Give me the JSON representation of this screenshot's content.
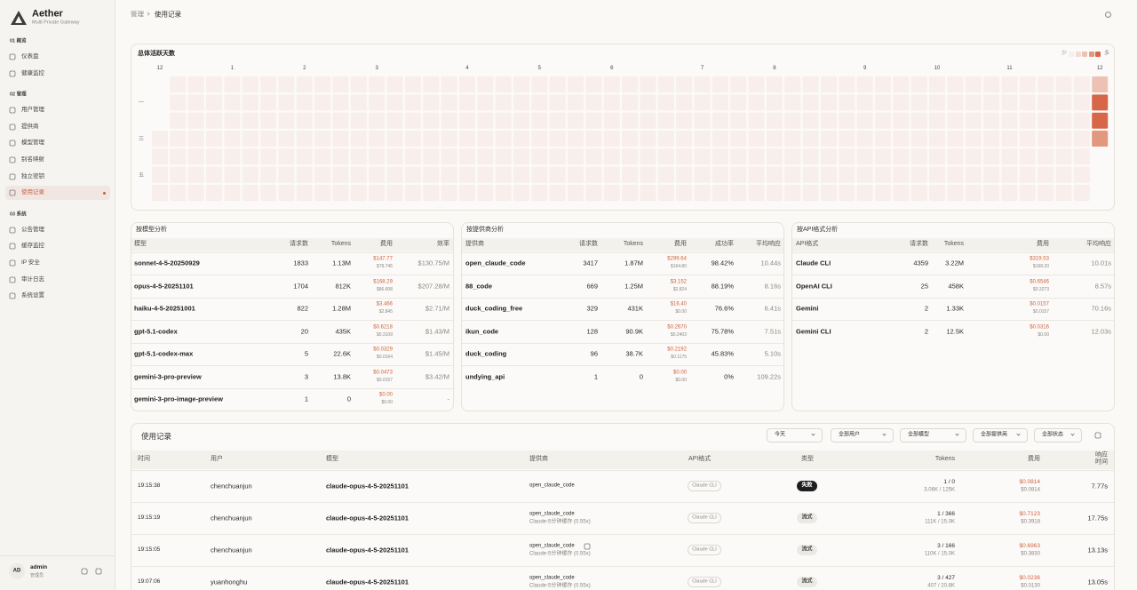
{
  "sidebar": {
    "brand": "Aether",
    "tagline": "Multi Private Gateway",
    "sections": [
      {
        "label": "01 概览",
        "items": [
          {
            "label": "仪表盘"
          },
          {
            "label": "健康监控"
          }
        ]
      },
      {
        "label": "02 管理",
        "items": [
          {
            "label": "用户管理"
          },
          {
            "label": "提供商"
          },
          {
            "label": "模型管理"
          },
          {
            "label": "别名映射"
          },
          {
            "label": "独立密钥"
          },
          {
            "label": "使用记录",
            "active": true
          }
        ]
      },
      {
        "label": "03 系统",
        "items": [
          {
            "label": "公告管理"
          },
          {
            "label": "缓存监控"
          },
          {
            "label": "IP 安全"
          },
          {
            "label": "审计日志"
          },
          {
            "label": "系统设置"
          }
        ]
      }
    ],
    "user": {
      "initials": "AD",
      "name": "admin",
      "role": "管理员"
    }
  },
  "breadcrumb": [
    "管理",
    "使用记录"
  ],
  "heatmap": {
    "title": "总体活跃天数",
    "legend_low": "少",
    "legend_high": "多",
    "legend_colors": [
      "#f8eeeb",
      "#f3dcd4",
      "#edc2b4",
      "#e3977e",
      "#d8674a"
    ],
    "day_labels": [
      {
        "label": "一",
        "row": 1
      },
      {
        "label": "三",
        "row": 3
      },
      {
        "label": "五",
        "row": 5
      }
    ],
    "months": [
      {
        "label": "12",
        "week": 0
      },
      {
        "label": "1",
        "week": 4
      },
      {
        "label": "2",
        "week": 8
      },
      {
        "label": "3",
        "week": 12
      },
      {
        "label": "4",
        "week": 17
      },
      {
        "label": "5",
        "week": 21
      },
      {
        "label": "6",
        "week": 25
      },
      {
        "label": "7",
        "week": 30
      },
      {
        "label": "8",
        "week": 34
      },
      {
        "label": "9",
        "week": 39
      },
      {
        "label": "10",
        "week": 43
      },
      {
        "label": "11",
        "week": 47
      },
      {
        "label": "12",
        "week": 52
      }
    ],
    "weeks": [
      [
        null,
        null,
        null,
        0,
        0,
        0,
        0
      ],
      [
        0,
        0,
        0,
        0,
        0,
        0,
        0
      ],
      [
        0,
        0,
        0,
        0,
        0,
        0,
        0
      ],
      [
        0,
        0,
        0,
        0,
        0,
        0,
        0
      ],
      [
        0,
        0,
        0,
        0,
        0,
        0,
        0
      ],
      [
        0,
        0,
        0,
        0,
        0,
        0,
        0
      ],
      [
        0,
        0,
        0,
        0,
        0,
        0,
        0
      ],
      [
        0,
        0,
        0,
        0,
        0,
        0,
        0
      ],
      [
        0,
        0,
        0,
        0,
        0,
        0,
        0
      ],
      [
        0,
        0,
        0,
        0,
        0,
        0,
        0
      ],
      [
        0,
        0,
        0,
        0,
        0,
        0,
        0
      ],
      [
        0,
        0,
        0,
        0,
        0,
        0,
        0
      ],
      [
        0,
        0,
        0,
        0,
        0,
        0,
        0
      ],
      [
        0,
        0,
        0,
        0,
        0,
        0,
        0
      ],
      [
        0,
        0,
        0,
        0,
        0,
        0,
        0
      ],
      [
        0,
        0,
        0,
        0,
        0,
        0,
        0
      ],
      [
        0,
        0,
        0,
        0,
        0,
        0,
        0
      ],
      [
        0,
        0,
        0,
        0,
        0,
        0,
        0
      ],
      [
        0,
        0,
        0,
        0,
        0,
        0,
        0
      ],
      [
        0,
        0,
        0,
        0,
        0,
        0,
        0
      ],
      [
        0,
        0,
        0,
        0,
        0,
        0,
        0
      ],
      [
        0,
        0,
        0,
        0,
        0,
        0,
        0
      ],
      [
        0,
        0,
        0,
        0,
        0,
        0,
        0
      ],
      [
        0,
        0,
        0,
        0,
        0,
        0,
        0
      ],
      [
        0,
        0,
        0,
        0,
        0,
        0,
        0
      ],
      [
        0,
        0,
        0,
        0,
        0,
        0,
        0
      ],
      [
        0,
        0,
        0,
        0,
        0,
        0,
        0
      ],
      [
        0,
        0,
        0,
        0,
        0,
        0,
        0
      ],
      [
        0,
        0,
        0,
        0,
        0,
        0,
        0
      ],
      [
        0,
        0,
        0,
        0,
        0,
        0,
        0
      ],
      [
        0,
        0,
        0,
        0,
        0,
        0,
        0
      ],
      [
        0,
        0,
        0,
        0,
        0,
        0,
        0
      ],
      [
        0,
        0,
        0,
        0,
        0,
        0,
        0
      ],
      [
        0,
        0,
        0,
        0,
        0,
        0,
        0
      ],
      [
        0,
        0,
        0,
        0,
        0,
        0,
        0
      ],
      [
        0,
        0,
        0,
        0,
        0,
        0,
        0
      ],
      [
        0,
        0,
        0,
        0,
        0,
        0,
        0
      ],
      [
        0,
        0,
        0,
        0,
        0,
        0,
        0
      ],
      [
        0,
        0,
        0,
        0,
        0,
        0,
        0
      ],
      [
        0,
        0,
        0,
        0,
        0,
        0,
        0
      ],
      [
        0,
        0,
        0,
        0,
        0,
        0,
        0
      ],
      [
        0,
        0,
        0,
        0,
        0,
        0,
        0
      ],
      [
        0,
        0,
        0,
        0,
        0,
        0,
        0
      ],
      [
        0,
        0,
        0,
        0,
        0,
        0,
        0
      ],
      [
        0,
        0,
        0,
        0,
        0,
        0,
        0
      ],
      [
        0,
        0,
        0,
        0,
        0,
        0,
        0
      ],
      [
        0,
        0,
        0,
        0,
        0,
        0,
        0
      ],
      [
        0,
        0,
        0,
        0,
        0,
        0,
        0
      ],
      [
        0,
        0,
        0,
        0,
        0,
        0,
        0
      ],
      [
        0,
        0,
        0,
        0,
        0,
        0,
        0
      ],
      [
        0,
        0,
        0,
        0,
        0,
        0,
        0
      ],
      [
        0,
        0,
        0,
        0,
        0,
        0,
        0
      ],
      [
        2,
        4,
        4,
        3,
        null,
        null,
        null
      ]
    ]
  },
  "by_model": {
    "title": "按模型分析",
    "headers": [
      "模型",
      "请求数",
      "Tokens",
      "费用",
      "效率"
    ],
    "rows": [
      {
        "name": "sonnet-4-5-20250929",
        "requests": "1833",
        "tokens": "1.13M",
        "cost": "$147.77",
        "cost_sub": "$78.745",
        "efficiency": "$130.75/M"
      },
      {
        "name": "opus-4-5-20251101",
        "requests": "1704",
        "tokens": "812K",
        "cost": "$168.29",
        "cost_sub": "$86.608",
        "efficiency": "$207.28/M"
      },
      {
        "name": "haiku-4-5-20251001",
        "requests": "822",
        "tokens": "1.28M",
        "cost": "$3.466",
        "cost_sub": "$2.845",
        "efficiency": "$2.71/M"
      },
      {
        "name": "gpt-5.1-codex",
        "requests": "20",
        "tokens": "435K",
        "cost": "$0.6218",
        "cost_sub": "$0.3109",
        "efficiency": "$1.43/M"
      },
      {
        "name": "gpt-5.1-codex-max",
        "requests": "5",
        "tokens": "22.6K",
        "cost": "$0.0329",
        "cost_sub": "$0.0164",
        "efficiency": "$1.45/M"
      },
      {
        "name": "gemini-3-pro-preview",
        "requests": "3",
        "tokens": "13.8K",
        "cost": "$0.0473",
        "cost_sub": "$0.0157",
        "efficiency": "$3.42/M"
      },
      {
        "name": "gemini-3-pro-image-preview",
        "requests": "1",
        "tokens": "0",
        "cost": "$0.00",
        "cost_sub": "$0.00",
        "efficiency": "-"
      }
    ]
  },
  "by_provider": {
    "title": "按提供商分析",
    "headers": [
      "提供商",
      "请求数",
      "Tokens",
      "费用",
      "成功率",
      "平均响应"
    ],
    "rows": [
      {
        "name": "open_claude_code",
        "requests": "3417",
        "tokens": "1.87M",
        "cost": "$299.64",
        "cost_sub": "$164.80",
        "success": "98.42%",
        "avg": "10.44s"
      },
      {
        "name": "88_code",
        "requests": "669",
        "tokens": "1.25M",
        "cost": "$3.152",
        "cost_sub": "$2.824",
        "success": "88.19%",
        "avg": "8.16s"
      },
      {
        "name": "duck_coding_free",
        "requests": "329",
        "tokens": "431K",
        "cost": "$16.40",
        "cost_sub": "$0.00",
        "success": "76.6%",
        "avg": "6.41s"
      },
      {
        "name": "ikun_code",
        "requests": "128",
        "tokens": "90.9K",
        "cost": "$0.2670",
        "cost_sub": "$0.2403",
        "success": "75.78%",
        "avg": "7.51s"
      },
      {
        "name": "duck_coding",
        "requests": "96",
        "tokens": "38.7K",
        "cost": "$0.2192",
        "cost_sub": "$0.1175",
        "success": "45.83%",
        "avg": "5.10s"
      },
      {
        "name": "undying_api",
        "requests": "1",
        "tokens": "0",
        "cost": "$0.00",
        "cost_sub": "$0.00",
        "success": "0%",
        "avg": "109.22s"
      }
    ]
  },
  "by_api_format": {
    "title": "按API格式分析",
    "headers": [
      "API格式",
      "请求数",
      "Tokens",
      "费用",
      "平均响应"
    ],
    "rows": [
      {
        "name": "Claude CLI",
        "requests": "4359",
        "tokens": "3.22M",
        "cost": "$319.53",
        "cost_sub": "$168.20",
        "avg": "10.01s"
      },
      {
        "name": "OpenAI CLI",
        "requests": "25",
        "tokens": "458K",
        "cost": "$0.6546",
        "cost_sub": "$0.3273",
        "avg": "8.57s"
      },
      {
        "name": "Gemini",
        "requests": "2",
        "tokens": "1.33K",
        "cost": "$0.0157",
        "cost_sub": "$0.0157",
        "avg": "70.16s"
      },
      {
        "name": "Gemini CLI",
        "requests": "2",
        "tokens": "12.5K",
        "cost": "$0.0316",
        "cost_sub": "$0.00",
        "avg": "12.03s"
      }
    ]
  },
  "usage": {
    "title": "使用记录",
    "filters": [
      "今天",
      "全部用户",
      "全部模型",
      "全部提供商",
      "全部状态"
    ],
    "headers": [
      "时间",
      "用户",
      "模型",
      "提供商",
      "API格式",
      "类型",
      "Tokens",
      "费用",
      "响应时间"
    ],
    "rows": [
      {
        "time": "19:15:38",
        "user": "chenchuanjun",
        "model": "claude-opus-4-5-20251101",
        "provider": "open_claude_code",
        "api": "Claude CLI",
        "type": "失败",
        "type_dark": true,
        "tokens_top": "1 / 0",
        "tokens_bottom": "3.06K / 125K",
        "cost": "$0.0814",
        "cost_sub": "$0.0814",
        "resp": "7.77s"
      },
      {
        "time": "19:15:19",
        "user": "chenchuanjun",
        "model": "claude-opus-4-5-20251101",
        "provider": "open_claude_code",
        "provider_sub": "Claude-5分钟缓存 (0.55x)",
        "api": "Claude CLI",
        "type": "流式",
        "tokens_top": "1 / 366",
        "tokens_bottom": "111K / 15.0K",
        "cost": "$0.7123",
        "cost_sub": "$0.3918",
        "resp": "17.75s"
      },
      {
        "time": "19:15:05",
        "user": "chenchuanjun",
        "model": "claude-opus-4-5-20251101",
        "provider": "open_claude_code",
        "provider_sub": "Claude-5分钟缓存 (0.55x)",
        "retry": true,
        "api": "Claude CLI",
        "type": "流式",
        "tokens_top": "3 / 166",
        "tokens_bottom": "110K / 15.0K",
        "cost": "$0.6963",
        "cost_sub": "$0.3830",
        "resp": "13.13s"
      },
      {
        "time": "19:07:06",
        "user": "yuanhonghu",
        "model": "claude-opus-4-5-20251101",
        "provider": "open_claude_code",
        "provider_sub": "Claude-5分钟缓存 (0.55x)",
        "api": "Claude CLI",
        "type": "流式",
        "tokens_top": "3 / 427",
        "tokens_bottom": "407 / 20.8K",
        "cost": "$0.0236",
        "cost_sub": "$0.0130",
        "resp": "13.05s"
      }
    ]
  }
}
